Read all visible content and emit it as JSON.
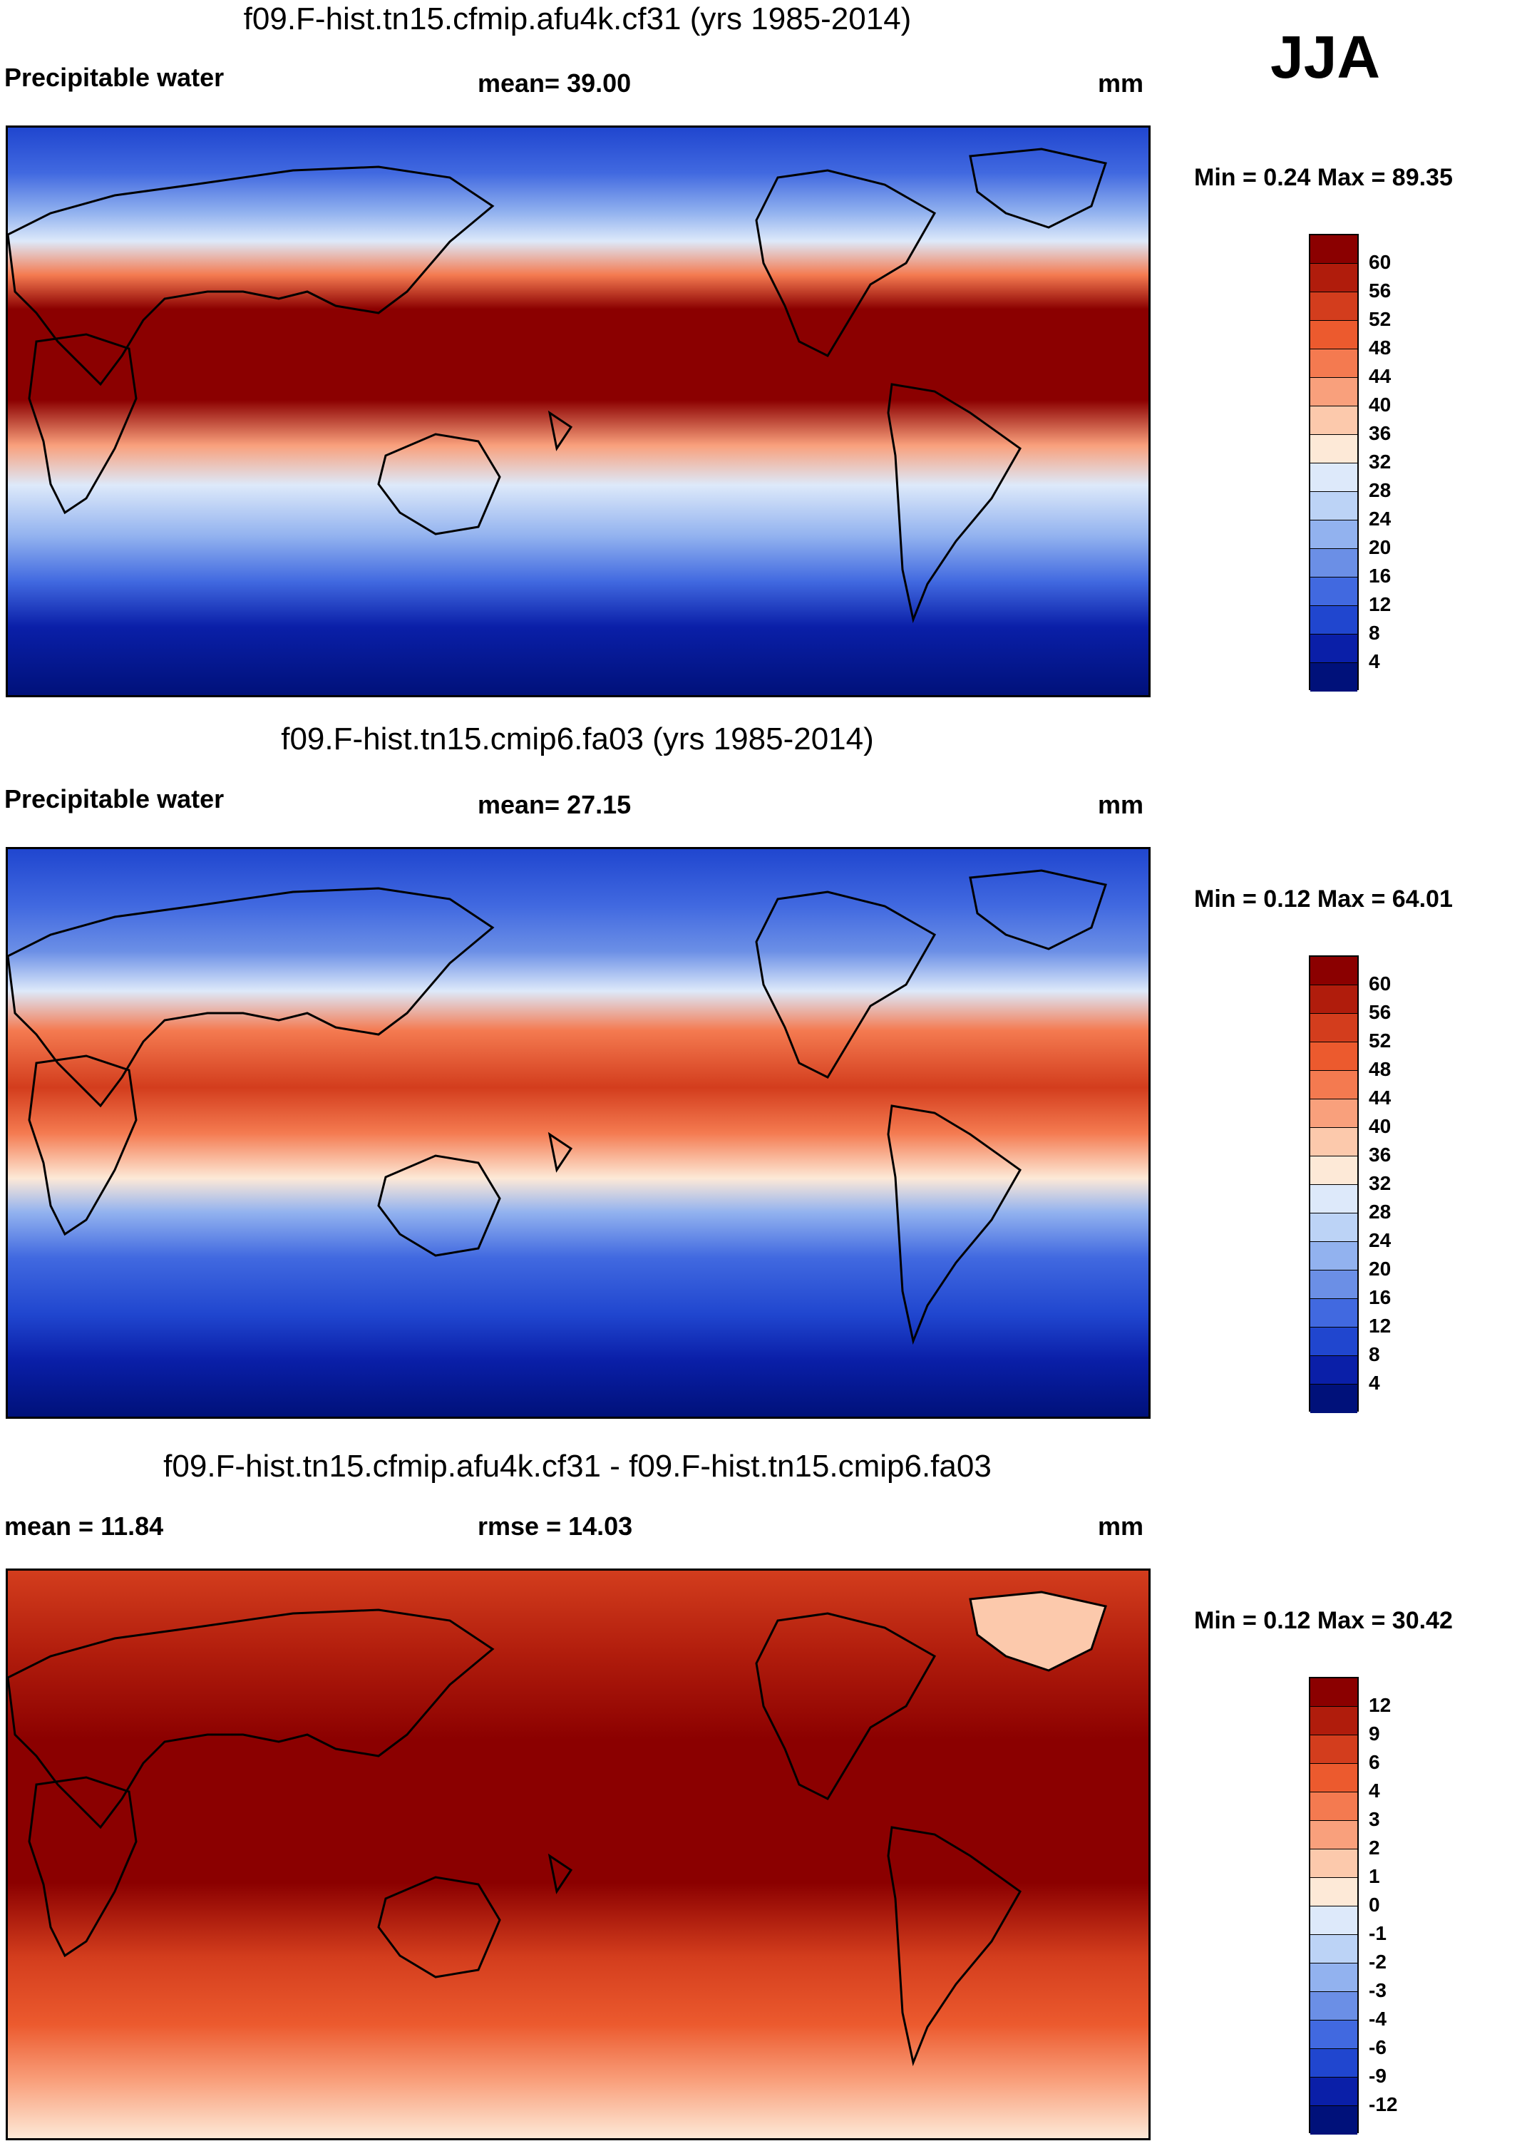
{
  "season": "JJA",
  "panels": [
    {
      "title": "f09.F-hist.tn15.cfmip.afu4k.cf31 (yrs 1985-2014)",
      "left_label": "Precipitable water",
      "center_label": "mean=  39.00",
      "units": "mm",
      "minmax": "Min =   0.24 Max =  89.35",
      "colorbar_labels": [
        "60",
        "56",
        "52",
        "48",
        "44",
        "40",
        "36",
        "32",
        "28",
        "24",
        "20",
        "16",
        "12",
        "8",
        "4"
      ]
    },
    {
      "title": "f09.F-hist.tn15.cmip6.fa03 (yrs 1985-2014)",
      "left_label": "Precipitable water",
      "center_label": "mean=  27.15",
      "units": "mm",
      "minmax": "Min =   0.12 Max =  64.01",
      "colorbar_labels": [
        "60",
        "56",
        "52",
        "48",
        "44",
        "40",
        "36",
        "32",
        "28",
        "24",
        "20",
        "16",
        "12",
        "8",
        "4"
      ]
    },
    {
      "title": "f09.F-hist.tn15.cfmip.afu4k.cf31 - f09.F-hist.tn15.cmip6.fa03",
      "left_label": "mean =  11.84",
      "center_label": "rmse =  14.03",
      "units": "mm",
      "minmax": "Min =   0.12 Max =  30.42",
      "colorbar_labels": [
        "12",
        "9",
        "6",
        "4",
        "3",
        "2",
        "1",
        "0",
        "-1",
        "-2",
        "-3",
        "-4",
        "-6",
        "-9",
        "-12"
      ]
    }
  ],
  "colors": {
    "abs_scale": [
      "#8b0000",
      "#b01c0c",
      "#d33d1d",
      "#ec5a2e",
      "#f47a50",
      "#f9a07c",
      "#fcc9ac",
      "#fde9d7",
      "#dde9fa",
      "#bcd3f6",
      "#92b2ef",
      "#6b8fe6",
      "#4169e0",
      "#2046cf",
      "#0a1fa8",
      "#00117a"
    ],
    "diff_scale": [
      "#8b0000",
      "#b01c0c",
      "#d33d1d",
      "#ec5a2e",
      "#f47a50",
      "#f9a07c",
      "#fcc9ac",
      "#fde9d7",
      "#dde9fa",
      "#bcd3f6",
      "#92b2ef",
      "#6b8fe6",
      "#4169e0",
      "#2046cf",
      "#0a1fa8",
      "#00117a"
    ]
  }
}
